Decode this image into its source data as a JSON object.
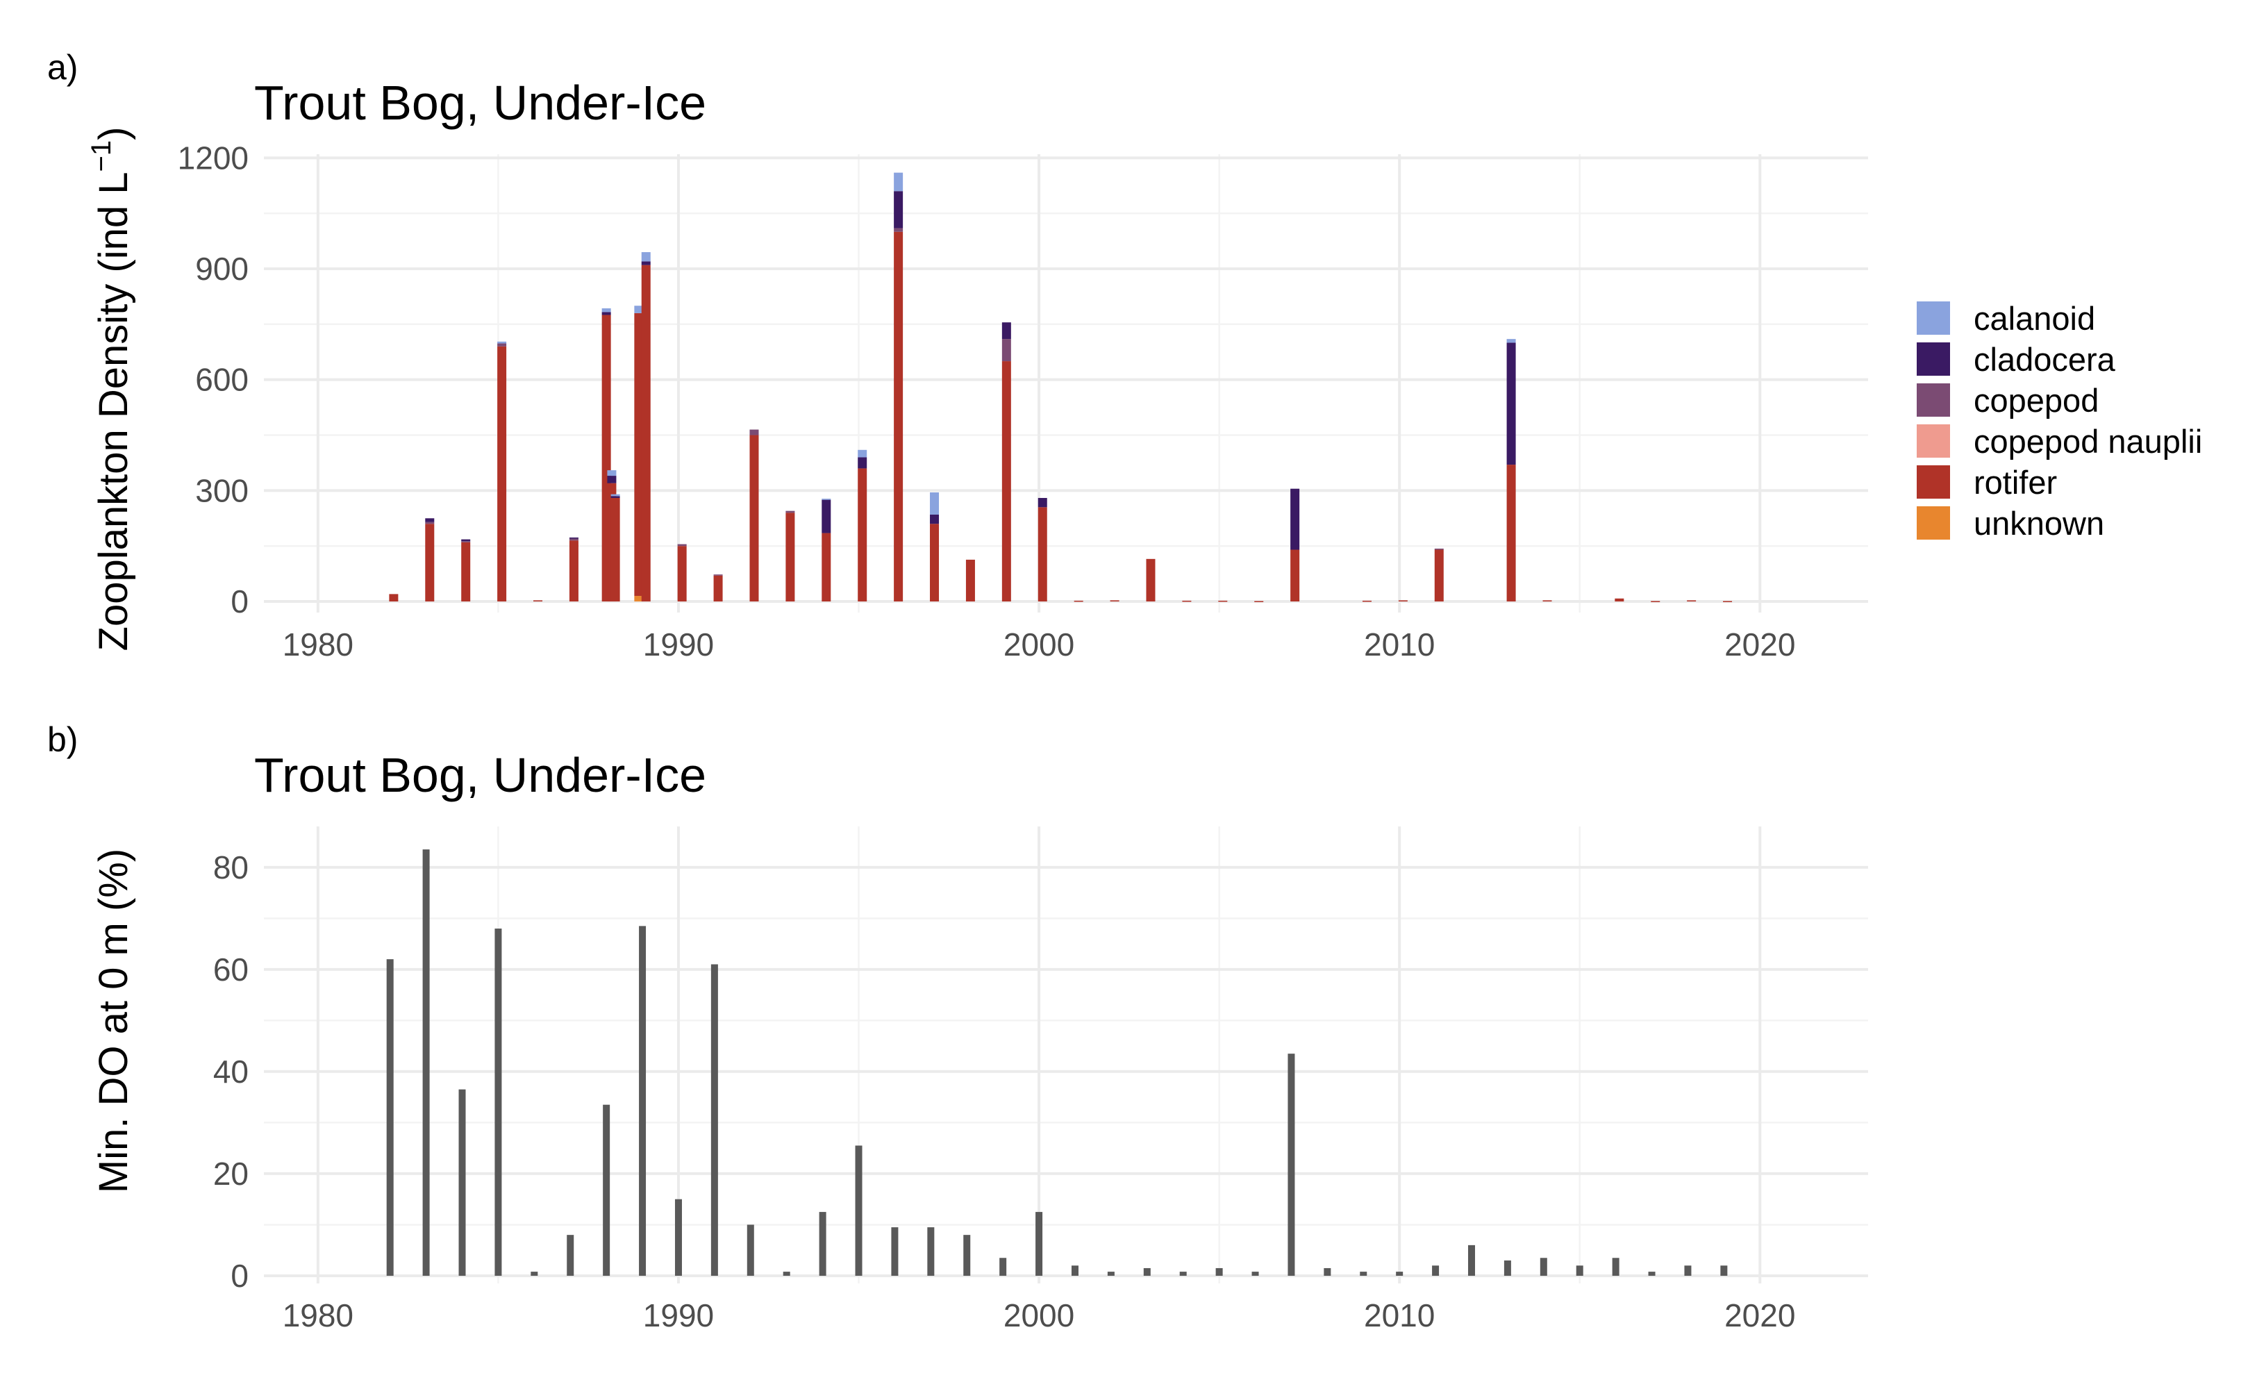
{
  "panel_labels": [
    "a)",
    "b)"
  ],
  "chart_data": [
    {
      "type": "bar",
      "stacked": true,
      "title": "Trout Bog, Under-Ice",
      "ylabel_main": "Zooplankton Density (ind L",
      "ylabel_sup": "−1",
      "ylabel_end": ")",
      "xlabel": "",
      "xlim": [
        1978.5,
        2023
      ],
      "ylim": [
        -30,
        1210
      ],
      "xticks": [
        1980,
        1990,
        2000,
        2010,
        2020
      ],
      "xtick_labels": [
        "1980",
        "1990",
        "2000",
        "2010",
        "2020"
      ],
      "yticks": [
        0,
        300,
        600,
        900,
        1200
      ],
      "ytick_labels": [
        "0",
        "300",
        "600",
        "900",
        "1200"
      ],
      "grid": true,
      "legend_position": "right",
      "series": [
        {
          "name": "calanoid",
          "color": "#8aa3de"
        },
        {
          "name": "cladocera",
          "color": "#3a1a63"
        },
        {
          "name": "copepod",
          "color": "#7b4b73"
        },
        {
          "name": "copepod nauplii",
          "color": "#ef9b8f"
        },
        {
          "name": "rotifer",
          "color": "#b03328"
        },
        {
          "name": "unknown",
          "color": "#e8862e"
        }
      ],
      "bars": [
        {
          "x": 1982.1,
          "rotifer": 20
        },
        {
          "x": 1983.1,
          "rotifer": 210,
          "cladocera": 10,
          "copepod": 5
        },
        {
          "x": 1984.1,
          "rotifer": 160,
          "cladocera": 5,
          "copepod": 3
        },
        {
          "x": 1985.1,
          "rotifer": 690,
          "copepod": 8,
          "calanoid": 5
        },
        {
          "x": 1986.1,
          "rotifer": 3
        },
        {
          "x": 1987.1,
          "rotifer": 165,
          "copepod": 5,
          "cladocera": 3
        },
        {
          "x": 1988.0,
          "rotifer": 775,
          "cladocera": 8,
          "calanoid": 10
        },
        {
          "x": 1988.15,
          "rotifer": 320,
          "cladocera": 20,
          "calanoid": 15
        },
        {
          "x": 1988.25,
          "rotifer": 280,
          "cladocera": 5,
          "calanoid": 5
        },
        {
          "x": 1988.9,
          "unknown": 15,
          "rotifer": 765,
          "calanoid": 20
        },
        {
          "x": 1989.1,
          "rotifer": 910,
          "cladocera": 10,
          "calanoid": 25
        },
        {
          "x": 1990.1,
          "rotifer": 150,
          "copepod": 5
        },
        {
          "x": 1991.1,
          "rotifer": 70,
          "copepod": 3
        },
        {
          "x": 1992.1,
          "rotifer": 450,
          "copepod": 15
        },
        {
          "x": 1993.1,
          "rotifer": 240,
          "copepod": 5
        },
        {
          "x": 1994.1,
          "rotifer": 185,
          "cladocera": 90,
          "calanoid": 3
        },
        {
          "x": 1995.1,
          "rotifer": 360,
          "cladocera": 30,
          "calanoid": 20
        },
        {
          "x": 1996.1,
          "rotifer": 1000,
          "copepod": 10,
          "cladocera": 100,
          "calanoid": 50
        },
        {
          "x": 1997.1,
          "rotifer": 210,
          "cladocera": 25,
          "calanoid": 60
        },
        {
          "x": 1998.1,
          "rotifer": 113
        },
        {
          "x": 1999.1,
          "rotifer": 650,
          "copepod": 60,
          "cladocera": 45
        },
        {
          "x": 2000.1,
          "rotifer": 255,
          "cladocera": 25
        },
        {
          "x": 2001.1,
          "rotifer": 2
        },
        {
          "x": 2002.1,
          "rotifer": 3
        },
        {
          "x": 2003.1,
          "rotifer": 115
        },
        {
          "x": 2004.1,
          "rotifer": 2
        },
        {
          "x": 2005.1,
          "rotifer": 2
        },
        {
          "x": 2006.1,
          "rotifer": 1
        },
        {
          "x": 2007.1,
          "rotifer": 140,
          "cladocera": 165
        },
        {
          "x": 2009.1,
          "rotifer": 2
        },
        {
          "x": 2010.1,
          "rotifer": 3
        },
        {
          "x": 2011.1,
          "rotifer": 140,
          "copepod": 3
        },
        {
          "x": 2013.1,
          "rotifer": 370,
          "cladocera": 330,
          "calanoid": 10
        },
        {
          "x": 2014.1,
          "rotifer": 3
        },
        {
          "x": 2016.1,
          "rotifer": 8
        },
        {
          "x": 2017.1,
          "rotifer": 1
        },
        {
          "x": 2018.1,
          "rotifer": 3
        },
        {
          "x": 2019.1,
          "rotifer": 1
        }
      ]
    },
    {
      "type": "bar",
      "title": "Trout Bog, Under-Ice",
      "ylabel": "Min. DO at 0 m (%)",
      "xlabel": "",
      "xlim": [
        1978.5,
        2023
      ],
      "ylim": [
        -1.5,
        88
      ],
      "xticks": [
        1980,
        1990,
        2000,
        2010,
        2020
      ],
      "xtick_labels": [
        "1980",
        "1990",
        "2000",
        "2010",
        "2020"
      ],
      "yticks": [
        0,
        20,
        40,
        60,
        80
      ],
      "ytick_labels": [
        "0",
        "20",
        "40",
        "60",
        "80"
      ],
      "grid": true,
      "color": "#595959",
      "x": [
        1982,
        1983,
        1984,
        1985,
        1986,
        1987,
        1988,
        1989,
        1990,
        1991,
        1992,
        1993,
        1994,
        1995,
        1996,
        1997,
        1998,
        1999,
        2000,
        2001,
        2002,
        2003,
        2004,
        2005,
        2006,
        2007,
        2008,
        2009,
        2010,
        2011,
        2012,
        2013,
        2014,
        2015,
        2016,
        2017,
        2018,
        2019
      ],
      "values": [
        62,
        83.5,
        36.5,
        68,
        0.8,
        8,
        33.5,
        68.5,
        15,
        61,
        10,
        0.8,
        12.5,
        25.5,
        9.5,
        9.5,
        8,
        3.5,
        12.5,
        2,
        0.8,
        1.5,
        0.8,
        1.5,
        0.8,
        43.5,
        1.5,
        0.8,
        0.8,
        2,
        6,
        3,
        3.5,
        2,
        3.5,
        0.8,
        2,
        2
      ]
    }
  ]
}
